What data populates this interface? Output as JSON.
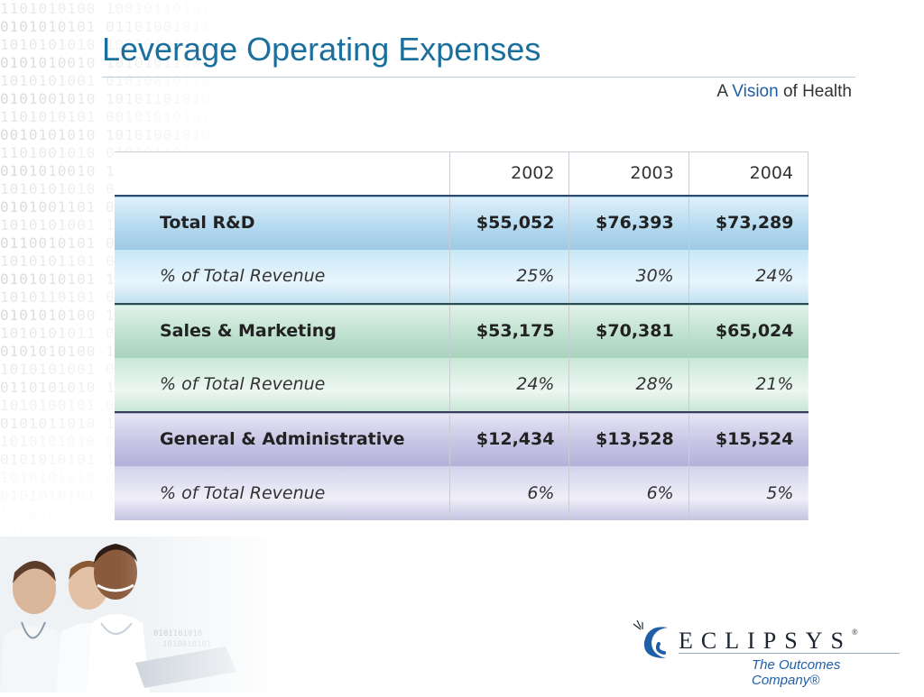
{
  "slide": {
    "title": "Leverage Operating Expenses",
    "tagline": {
      "part1": "A ",
      "accent": "Vision",
      "part2": " of Health"
    }
  },
  "table": {
    "years": [
      "2002",
      "2003",
      "2004"
    ],
    "rows": [
      {
        "label": "Total R&D",
        "values": [
          "$55,052",
          "$76,393",
          "$73,289"
        ]
      },
      {
        "label": "% of Total Revenue",
        "values": [
          "25%",
          "30%",
          "24%"
        ]
      },
      {
        "label": "Sales & Marketing",
        "values": [
          "$53,175",
          "$70,381",
          "$65,024"
        ]
      },
      {
        "label": "% of Total Revenue",
        "values": [
          "24%",
          "28%",
          "21%"
        ]
      },
      {
        "label": "General & Administrative",
        "values": [
          "$12,434",
          "$13,528",
          "$15,524"
        ]
      },
      {
        "label": "% of Total Revenue",
        "values": [
          "6%",
          "6%",
          "5%"
        ]
      }
    ]
  },
  "logo": {
    "wordmark": "ECLIPSYS",
    "registered": "®",
    "slogan": "The Outcomes Company®"
  },
  "colors": {
    "title": "#1a6f9c",
    "accent": "#1f5fa8",
    "band_blue": "#b5daf0",
    "band_green": "#bfe1cf",
    "band_purple": "#c7c5e4"
  }
}
